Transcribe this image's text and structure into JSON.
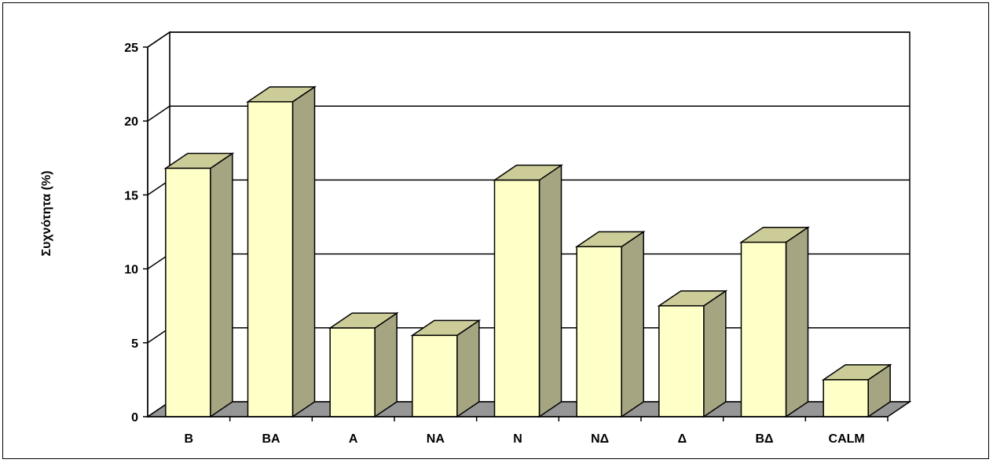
{
  "chart_data": {
    "type": "bar",
    "title": "",
    "xlabel": "",
    "ylabel": "Συχνότητα (%)",
    "ylim": [
      0,
      25
    ],
    "yticks": [
      0,
      5,
      10,
      15,
      20,
      25
    ],
    "grid": true,
    "categories": [
      "Β",
      "ΒΑ",
      "Α",
      "ΝΑ",
      "Ν",
      "ΝΔ",
      "Δ",
      "ΒΔ",
      "CALM"
    ],
    "values": [
      16.8,
      21.3,
      6.0,
      5.5,
      16.0,
      11.5,
      7.5,
      11.8,
      2.5
    ],
    "colors": {
      "bar_front": "#ffffc8",
      "bar_side": "#a5a582",
      "bar_top": "#cccc99",
      "floor": "#969696",
      "background": "#ffffff",
      "gridline": "#000000"
    }
  }
}
